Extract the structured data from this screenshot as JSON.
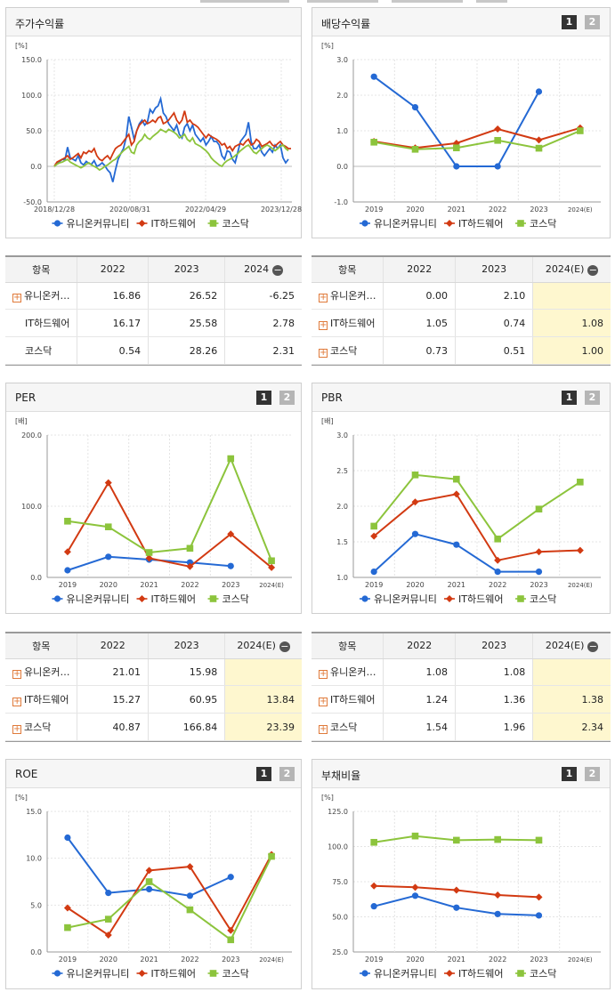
{
  "colors": {
    "blue": "#2469d4",
    "red": "#d23a12",
    "green": "#8cc43c"
  },
  "legend": [
    {
      "name": "유니온커뮤니티",
      "color": "#2469d4",
      "marker": "circle"
    },
    {
      "name": "IT하드웨어",
      "color": "#d23a12",
      "marker": "diamond"
    },
    {
      "name": "코스닥",
      "color": "#8cc43c",
      "marker": "square"
    }
  ],
  "charts": {
    "stock": {
      "title": "주가수익률",
      "unit": "[%]",
      "type": "line",
      "ylim": [
        -50,
        150
      ],
      "yticks": [
        "150.0",
        "100.0",
        "50.0",
        "0.0",
        "-50.0"
      ],
      "xticks": [
        "2018/12/28",
        "2020/08/31",
        "2022/04/29",
        "2023/12/28"
      ],
      "series": {
        "blue": [
          0,
          4,
          7,
          10,
          9,
          27,
          12,
          10,
          8,
          15,
          5,
          2,
          7,
          4,
          3,
          8,
          0,
          2,
          5,
          1,
          -5,
          -9,
          -22,
          -5,
          10,
          18,
          25,
          40,
          70,
          55,
          38,
          50,
          60,
          65,
          58,
          62,
          80,
          75,
          82,
          85,
          95,
          75,
          70,
          60,
          55,
          50,
          58,
          45,
          40,
          55,
          60,
          50,
          58,
          45,
          40,
          35,
          40,
          30,
          35,
          42,
          35,
          35,
          30,
          15,
          10,
          22,
          20,
          10,
          5,
          20,
          35,
          40,
          45,
          62,
          35,
          25,
          25,
          30,
          20,
          15,
          20,
          25,
          20,
          30,
          25,
          30,
          12,
          5,
          10
        ],
        "red": [
          0,
          6,
          8,
          10,
          12,
          15,
          10,
          12,
          15,
          18,
          12,
          20,
          18,
          22,
          20,
          25,
          15,
          10,
          8,
          12,
          15,
          10,
          18,
          25,
          28,
          30,
          35,
          40,
          45,
          30,
          35,
          50,
          58,
          62,
          65,
          60,
          62,
          65,
          62,
          68,
          70,
          60,
          62,
          65,
          70,
          75,
          65,
          60,
          65,
          78,
          62,
          65,
          60,
          58,
          55,
          50,
          45,
          40,
          45,
          42,
          40,
          38,
          35,
          30,
          32,
          25,
          28,
          22,
          28,
          30,
          32,
          30,
          35,
          38,
          30,
          32,
          38,
          35,
          28,
          30,
          32,
          35,
          30,
          28,
          32,
          35,
          30,
          28,
          25,
          25
        ],
        "green": [
          0,
          3,
          5,
          6,
          8,
          10,
          6,
          4,
          2,
          0,
          -2,
          0,
          3,
          5,
          2,
          0,
          -2,
          -5,
          -3,
          0,
          2,
          5,
          8,
          10,
          14,
          18,
          22,
          25,
          28,
          20,
          18,
          30,
          35,
          38,
          45,
          40,
          38,
          42,
          45,
          48,
          52,
          50,
          48,
          52,
          50,
          48,
          45,
          40,
          42,
          45,
          38,
          35,
          40,
          32,
          30,
          28,
          25,
          22,
          18,
          12,
          8,
          5,
          2,
          0,
          5,
          8,
          10,
          12,
          15,
          18,
          22,
          25,
          28,
          30,
          25,
          20,
          18,
          22,
          25,
          28,
          30,
          28,
          25,
          22,
          25,
          28,
          30,
          25,
          22
        ]
      }
    },
    "dividend": {
      "title": "배당수익률",
      "unit": "[%]",
      "ylim": [
        -1,
        3
      ],
      "yticks": [
        "3.0",
        "2.0",
        "1.0",
        "0.0",
        "-1.0"
      ],
      "x": [
        "2019",
        "2020",
        "2021",
        "2022",
        "2023",
        "2024(E)"
      ],
      "series": {
        "blue": [
          2.52,
          1.66,
          0.0,
          0.0,
          2.1,
          null
        ],
        "red": [
          0.7,
          0.52,
          0.65,
          1.05,
          0.74,
          1.08
        ],
        "green": [
          0.68,
          0.48,
          0.52,
          0.73,
          0.51,
          1.0
        ]
      }
    },
    "per": {
      "title": "PER",
      "unit": "[배]",
      "ylim": [
        0,
        200
      ],
      "yticks": [
        "200.0",
        "100.0",
        "0.0"
      ],
      "x": [
        "2019",
        "2020",
        "2021",
        "2022",
        "2023",
        "2024(E)"
      ],
      "series": {
        "blue": [
          10,
          29,
          25,
          21.01,
          15.98,
          null
        ],
        "red": [
          36,
          133,
          27,
          15.27,
          60.95,
          13.84
        ],
        "green": [
          79,
          71,
          35,
          40.87,
          166.84,
          23.39
        ]
      }
    },
    "pbr": {
      "title": "PBR",
      "unit": "[배]",
      "ylim": [
        1,
        3
      ],
      "yticks": [
        "3.0",
        "2.5",
        "2.0",
        "1.5",
        "1.0"
      ],
      "x": [
        "2019",
        "2020",
        "2021",
        "2022",
        "2023",
        "2024(E)"
      ],
      "series": {
        "blue": [
          1.08,
          1.61,
          1.46,
          1.08,
          1.08,
          null
        ],
        "red": [
          1.58,
          2.06,
          2.17,
          1.24,
          1.36,
          1.38
        ],
        "green": [
          1.72,
          2.44,
          2.38,
          1.54,
          1.96,
          2.34
        ]
      }
    },
    "roe": {
      "title": "ROE",
      "unit": "[%]",
      "ylim": [
        0,
        15
      ],
      "yticks": [
        "15.0",
        "10.0",
        "5.0",
        "0.0"
      ],
      "x": [
        "2019",
        "2020",
        "2021",
        "2022",
        "2023",
        "2024(E)"
      ],
      "series": {
        "blue": [
          12.2,
          6.3,
          6.7,
          6.0,
          8.0,
          null
        ],
        "red": [
          4.7,
          1.8,
          8.7,
          9.1,
          2.3,
          10.4
        ],
        "green": [
          2.6,
          3.5,
          7.5,
          4.5,
          1.3,
          10.2
        ]
      }
    },
    "debt": {
      "title": "부채비율",
      "unit": "[%]",
      "ylim": [
        25,
        125
      ],
      "yticks": [
        "125.0",
        "100.0",
        "75.0",
        "50.0",
        "25.0"
      ],
      "x": [
        "2019",
        "2020",
        "2021",
        "2022",
        "2023",
        "2024(E)"
      ],
      "series": {
        "blue": [
          57.5,
          65,
          56.5,
          52,
          51,
          null
        ],
        "red": [
          72,
          71,
          69,
          65.5,
          64,
          null
        ],
        "green": [
          103,
          107.5,
          104.5,
          105,
          104.5,
          null
        ]
      }
    }
  },
  "tables": {
    "stock": {
      "head": [
        "항목",
        "2022",
        "2023",
        "2024"
      ],
      "rows": [
        [
          "유니온커…",
          "16.86",
          "26.52",
          "-6.25"
        ],
        [
          "IT하드웨어",
          "16.17",
          "25.58",
          "2.78"
        ],
        [
          "코스닥",
          "0.54",
          "28.26",
          "2.31"
        ]
      ]
    },
    "dividend": {
      "head": [
        "항목",
        "2022",
        "2023",
        "2024(E)"
      ],
      "rows": [
        [
          "유니온커…",
          "0.00",
          "2.10",
          ""
        ],
        [
          "IT하드웨어",
          "1.05",
          "0.74",
          "1.08"
        ],
        [
          "코스닥",
          "0.73",
          "0.51",
          "1.00"
        ]
      ]
    },
    "per": {
      "head": [
        "항목",
        "2022",
        "2023",
        "2024(E)"
      ],
      "rows": [
        [
          "유니온커…",
          "21.01",
          "15.98",
          ""
        ],
        [
          "IT하드웨어",
          "15.27",
          "60.95",
          "13.84"
        ],
        [
          "코스닥",
          "40.87",
          "166.84",
          "23.39"
        ]
      ]
    },
    "pbr": {
      "head": [
        "항목",
        "2022",
        "2023",
        "2024(E)"
      ],
      "rows": [
        [
          "유니온커…",
          "1.08",
          "1.08",
          ""
        ],
        [
          "IT하드웨어",
          "1.24",
          "1.36",
          "1.38"
        ],
        [
          "코스닥",
          "1.54",
          "1.96",
          "2.34"
        ]
      ]
    }
  }
}
